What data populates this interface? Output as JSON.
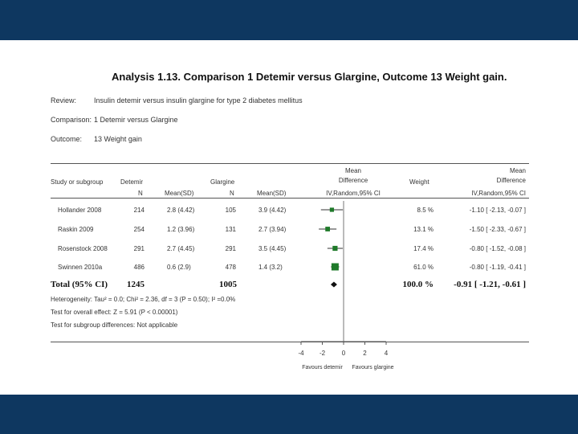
{
  "title": "Analysis 1.13.   Comparison 1 Detemir versus Glargine, Outcome 13 Weight gain.",
  "review": {
    "label": "Review:",
    "value": "Insulin detemir versus insulin glargine for type 2 diabetes mellitus"
  },
  "comparison": {
    "label": "Comparison:",
    "value": "1 Detemir versus Glargine"
  },
  "outcome": {
    "label": "Outcome:",
    "value": "13 Weight gain"
  },
  "headers": {
    "study": "Study or subgroup",
    "detemir": "Detemir",
    "glargine": "Glargine",
    "n": "N",
    "mean_sd": "Mean(SD)",
    "md_plot_1": "Mean",
    "md_plot_2": "Difference",
    "md_plot_3": "IV,Random,95% CI",
    "weight": "Weight",
    "md_1": "Mean",
    "md_2": "Difference",
    "md_3": "IV,Random,95% CI"
  },
  "total": {
    "label": "Total (95% CI)",
    "detemir_n": "1245",
    "glargine_n": "1005",
    "weight": "100.0 %",
    "md": "-0.91 [ -1.21, -0.61 ]"
  },
  "footnotes": {
    "heterogeneity": "Heterogeneity: Tau² = 0.0; Chi² = 2.36, df = 3 (P = 0.50); I² =0.0%",
    "overall": "Test for overall effect: Z = 5.91 (P < 0.00001)",
    "subgroup": "Test for subgroup differences: Not applicable"
  },
  "chart_data": {
    "type": "forest",
    "xlim": [
      -4,
      4
    ],
    "ticks": [
      "-4",
      "-2",
      "0",
      "2",
      "4"
    ],
    "tick_values": [
      -4,
      -2,
      0,
      2,
      4
    ],
    "left_label": "Favours detemir",
    "right_label": "Favours glargine",
    "studies": [
      {
        "name": "Hollander 2008",
        "d_n": "214",
        "d_mean_sd": "2.8 (4.42)",
        "g_n": "105",
        "g_mean_sd": "3.9 (4.42)",
        "weight": "8.5 %",
        "md_text": "-1.10 [ -2.13, -0.07 ]",
        "md": -1.1,
        "lo": -2.13,
        "hi": -0.07,
        "w": 8.5
      },
      {
        "name": "Raskin 2009",
        "d_n": "254",
        "d_mean_sd": "1.2 (3.96)",
        "g_n": "131",
        "g_mean_sd": "2.7 (3.94)",
        "weight": "13.1 %",
        "md_text": "-1.50 [ -2.33, -0.67 ]",
        "md": -1.5,
        "lo": -2.33,
        "hi": -0.67,
        "w": 13.1
      },
      {
        "name": "Rosenstock 2008",
        "d_n": "291",
        "d_mean_sd": "2.7 (4.45)",
        "g_n": "291",
        "g_mean_sd": "3.5 (4.45)",
        "weight": "17.4 %",
        "md_text": "-0.80 [ -1.52, -0.08 ]",
        "md": -0.8,
        "lo": -1.52,
        "hi": -0.08,
        "w": 17.4
      },
      {
        "name": "Swinnen 2010a",
        "d_n": "486",
        "d_mean_sd": "0.6 (2.9)",
        "g_n": "478",
        "g_mean_sd": "1.4 (3.2)",
        "weight": "61.0 %",
        "md_text": "-0.80 [ -1.19, -0.41 ]",
        "md": -0.8,
        "lo": -1.19,
        "hi": -0.41,
        "w": 61.0
      }
    ],
    "total": {
      "md": -0.91,
      "lo": -1.21,
      "hi": -0.61
    },
    "colors": {
      "marker": "#1f7a2a",
      "line": "#333333",
      "diamond": "#111111"
    }
  }
}
